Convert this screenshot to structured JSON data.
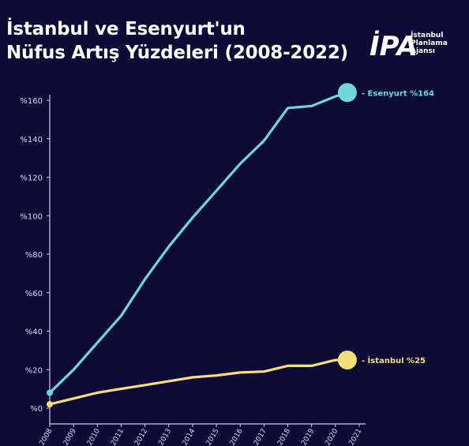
{
  "title_line1": "İstanbul ve Esenyurt'un",
  "title_line2": "Nüfus Artış Yüzdeleri (2008-2022)",
  "brand": {
    "logo_text": "İPA",
    "line1": "İstanbul",
    "line2": "Planlama",
    "line3": "Ajansı"
  },
  "colors": {
    "background": "#0d0b35",
    "esenyurt": "#6fd6dc",
    "istanbul": "#f6df7a",
    "axis": "#cfcde6"
  },
  "chart_data": {
    "type": "line",
    "title": "İstanbul ve Esenyurt'un Nüfus Artış Yüzdeleri (2008-2022)",
    "xlabel": "",
    "ylabel": "",
    "x": [
      2008,
      2009,
      2010,
      2011,
      2012,
      2013,
      2014,
      2015,
      2016,
      2017,
      2018,
      2019,
      2020,
      2020.5
    ],
    "x_ticks": [
      "2008",
      "2009",
      "2010",
      "2011",
      "2012",
      "2013",
      "2014",
      "2015",
      "2016",
      "2017",
      "2018",
      "2019",
      "2020",
      "2021"
    ],
    "y_ticks": [
      "%0",
      "%20",
      "%40",
      "%60",
      "%80",
      "%100",
      "%120",
      "%140",
      "%160"
    ],
    "ylim": [
      0,
      164
    ],
    "xlim": [
      2008,
      2021
    ],
    "grid": false,
    "series": [
      {
        "name": "Esenyurt",
        "end_label": "- Esenyurt %164",
        "values": [
          8,
          20,
          34,
          48,
          67,
          84,
          99,
          113,
          127,
          139,
          156,
          157,
          162,
          164
        ]
      },
      {
        "name": "İstanbul",
        "end_label": "- İstanbul %25",
        "values": [
          2,
          5,
          8,
          10,
          12,
          14,
          16,
          17,
          18.5,
          19,
          22,
          22,
          25,
          25
        ]
      }
    ]
  }
}
